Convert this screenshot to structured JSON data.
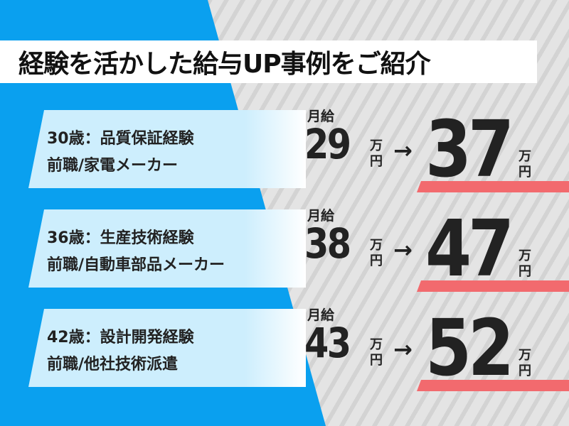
{
  "title": "経験を活かした給与UP事例をご紹介",
  "colors": {
    "blue": "#0aa0ef",
    "card": "#cdeefd",
    "accent_bar": "#f26a6e"
  },
  "label_monthly": "月給",
  "unit_man": "万",
  "unit_yen": "円",
  "arrow": "→",
  "cases": [
    {
      "line1": "30歳：品質保証経験",
      "line2": "前職/家電メーカー",
      "before": "29",
      "after": "37"
    },
    {
      "line1": "36歳：生産技術経験",
      "line2": "前職/自動車部品メーカー",
      "before": "38",
      "after": "47"
    },
    {
      "line1": "42歳：設計開発経験",
      "line2": "前職/他社技術派遣",
      "before": "43",
      "after": "52"
    }
  ]
}
